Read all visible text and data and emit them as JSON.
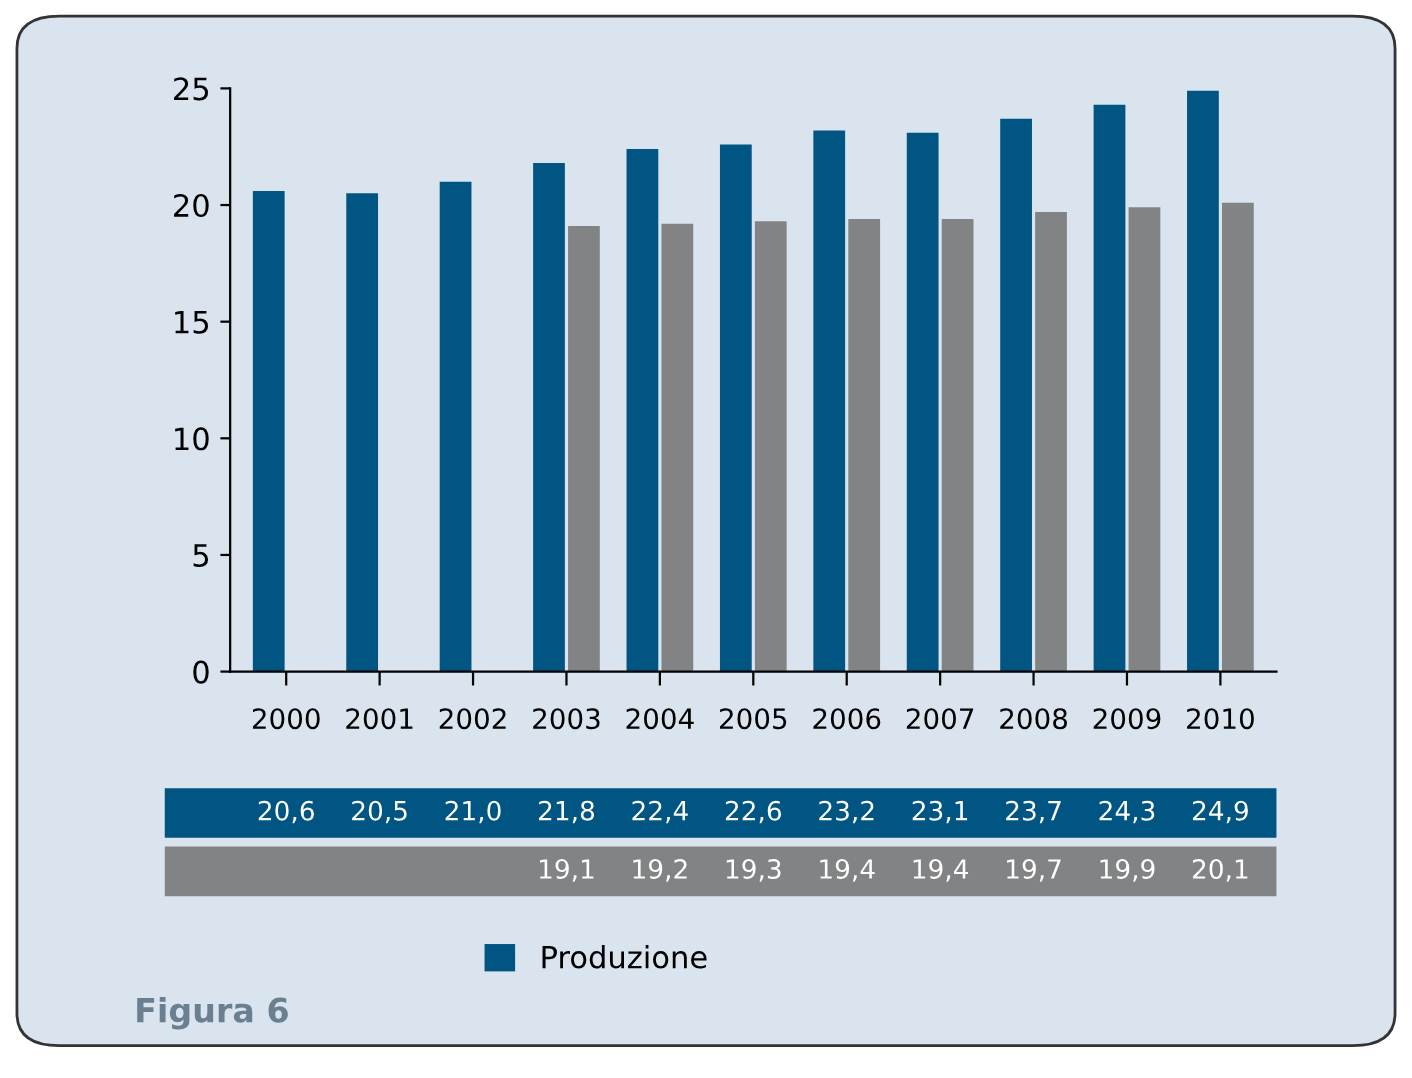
{
  "chart_data": {
    "type": "bar",
    "categories": [
      "2000",
      "2001",
      "2002",
      "2003",
      "2004",
      "2005",
      "2006",
      "2007",
      "2008",
      "2009",
      "2010"
    ],
    "series": [
      {
        "name": "Produzione",
        "color": "#005582",
        "values": [
          20.6,
          20.5,
          21.0,
          21.8,
          22.4,
          22.6,
          23.2,
          23.1,
          23.7,
          24.3,
          24.9
        ],
        "value_labels": [
          "20,6",
          "20,5",
          "21,0",
          "21,8",
          "22,4",
          "22,6",
          "23,2",
          "23,1",
          "23,7",
          "24,3",
          "24,9"
        ]
      },
      {
        "color": "#828385",
        "values": [
          null,
          null,
          null,
          19.1,
          19.2,
          19.3,
          19.4,
          19.4,
          19.7,
          19.9,
          20.1
        ],
        "value_labels": [
          null,
          null,
          null,
          "19,1",
          "19,2",
          "19,3",
          "19,4",
          "19,4",
          "19,7",
          "19,9",
          "20,1"
        ]
      }
    ],
    "ylim": [
      0,
      25
    ],
    "yticks": [
      0,
      5,
      10,
      15,
      20,
      25
    ],
    "grid": false,
    "legend": "bottom",
    "annotations": [
      "Figura 6"
    ]
  }
}
